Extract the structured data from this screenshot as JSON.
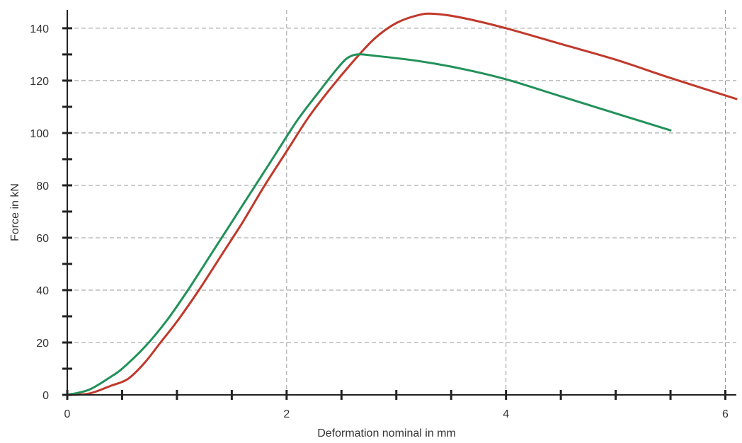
{
  "chart_data": {
    "type": "line",
    "title": "",
    "xlabel": "Deformation nominal in mm",
    "ylabel": "Force in kN",
    "xlim": [
      0,
      6.1
    ],
    "ylim": [
      0,
      147
    ],
    "x_ticks": [
      0,
      2,
      4,
      6
    ],
    "x_tick_labels": [
      "0",
      "2",
      "4",
      "6"
    ],
    "x_minor_step": 0.5,
    "y_ticks": [
      0,
      20,
      40,
      60,
      80,
      100,
      120,
      140
    ],
    "y_tick_labels": [
      "0",
      "20",
      "40",
      "60",
      "80",
      "100",
      "120",
      "140"
    ],
    "y_minor_step": 10,
    "grid": true,
    "legend": "none",
    "series": [
      {
        "color": "#c0392b",
        "points": [
          [
            0,
            0
          ],
          [
            0.2,
            0.5
          ],
          [
            0.4,
            3.5
          ],
          [
            0.55,
            6
          ],
          [
            0.7,
            12
          ],
          [
            0.85,
            20
          ],
          [
            1.0,
            28
          ],
          [
            1.2,
            40
          ],
          [
            1.4,
            53
          ],
          [
            1.6,
            66
          ],
          [
            1.8,
            80
          ],
          [
            2.0,
            93
          ],
          [
            2.2,
            106
          ],
          [
            2.4,
            117
          ],
          [
            2.6,
            127
          ],
          [
            2.8,
            136
          ],
          [
            3.0,
            142
          ],
          [
            3.2,
            145
          ],
          [
            3.35,
            145.5
          ],
          [
            3.6,
            144
          ],
          [
            4.0,
            140
          ],
          [
            4.5,
            134
          ],
          [
            5.0,
            128
          ],
          [
            5.5,
            121
          ],
          [
            6.1,
            113
          ]
        ]
      },
      {
        "color": "#22915a",
        "points": [
          [
            0,
            0
          ],
          [
            0.2,
            2
          ],
          [
            0.4,
            7
          ],
          [
            0.5,
            10
          ],
          [
            0.7,
            18
          ],
          [
            0.9,
            28
          ],
          [
            1.1,
            40
          ],
          [
            1.3,
            53
          ],
          [
            1.5,
            66
          ],
          [
            1.7,
            79
          ],
          [
            1.9,
            92
          ],
          [
            2.1,
            105
          ],
          [
            2.3,
            116
          ],
          [
            2.45,
            124
          ],
          [
            2.55,
            128.5
          ],
          [
            2.65,
            130
          ],
          [
            2.8,
            129.5
          ],
          [
            3.2,
            127.5
          ],
          [
            3.6,
            124.5
          ],
          [
            4.0,
            120.5
          ],
          [
            4.5,
            114
          ],
          [
            5.0,
            107.5
          ],
          [
            5.5,
            101
          ]
        ]
      }
    ]
  }
}
